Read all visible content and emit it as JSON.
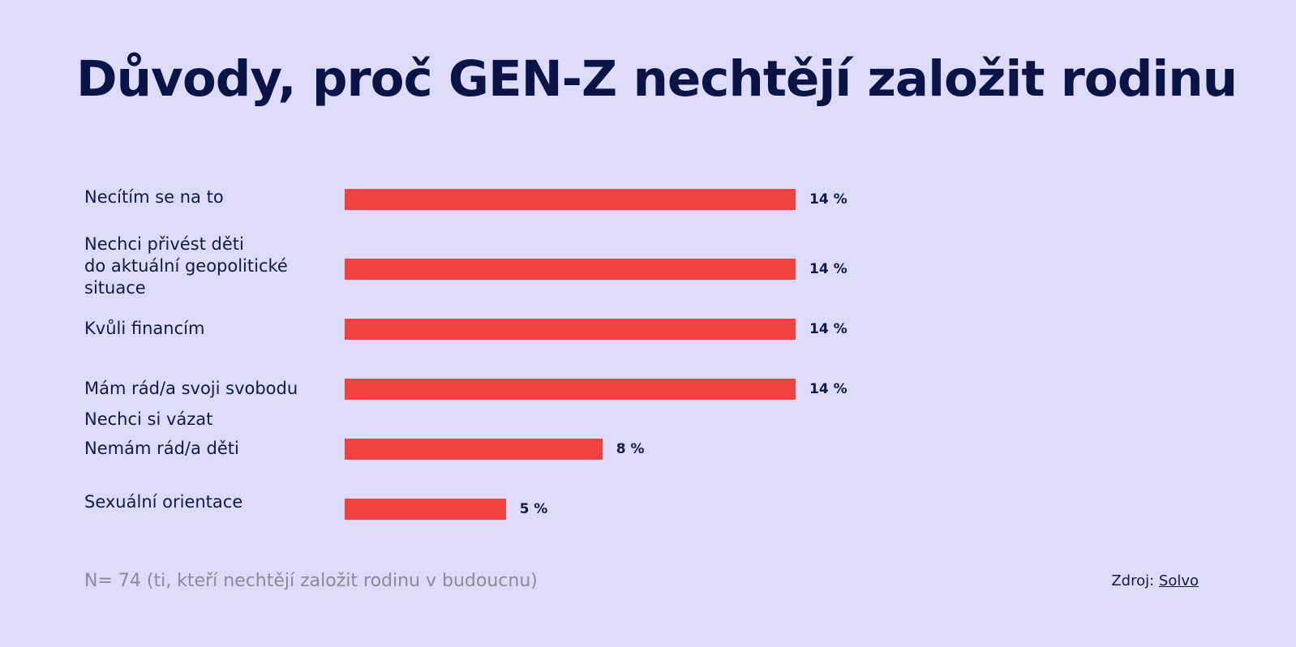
{
  "chart_data": {
    "type": "bar",
    "orientation": "horizontal",
    "title": "Důvody, proč GEN-Z nechtějí založit rodinu",
    "categories": [
      [
        "Necítím se na to"
      ],
      [
        "Nechci přivést děti",
        "do aktuální geopolitické",
        "situace"
      ],
      [
        "Kvůli financím"
      ],
      [
        "Mám rád/a svoji svobodu",
        "Nechci si vázat"
      ],
      [
        "Nemám rád/a děti"
      ],
      [
        "Sexuální orientace"
      ]
    ],
    "values": [
      14,
      14,
      14,
      14,
      8,
      5
    ],
    "value_labels": [
      "14 %",
      "14 %",
      "14 %",
      "14 %",
      "8 %",
      "5 %"
    ],
    "unit": "%",
    "bar_color": "#f04242",
    "background_color": "#dedafa"
  },
  "footer": {
    "note": "N= 74 (ti, kteří nechtějí založit rodinu v budoucnu)",
    "source_prefix": "Zdroj:",
    "source_link": "Solvo"
  }
}
